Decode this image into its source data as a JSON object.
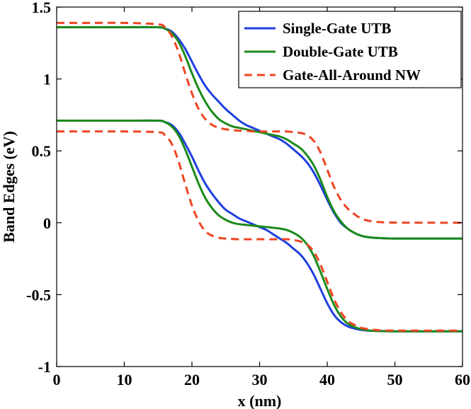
{
  "chart_data": {
    "type": "line",
    "xlabel": "x (nm)",
    "ylabel": "Band Edges (eV)",
    "xlim": [
      0,
      60
    ],
    "ylim": [
      -1,
      1.5
    ],
    "xticks": [
      {
        "value": 0,
        "label": "0"
      },
      {
        "value": 10,
        "label": "10"
      },
      {
        "value": 20,
        "label": "20"
      },
      {
        "value": 30,
        "label": "30"
      },
      {
        "value": 40,
        "label": "40"
      },
      {
        "value": 50,
        "label": "50"
      },
      {
        "value": 60,
        "label": "60"
      }
    ],
    "yticks": [
      {
        "value": -1,
        "label": "-1"
      },
      {
        "value": -0.5,
        "label": "-0.5"
      },
      {
        "value": 0,
        "label": "0"
      },
      {
        "value": 0.5,
        "label": "0.5"
      },
      {
        "value": 1,
        "label": "1"
      },
      {
        "value": 1.5,
        "label": "1.5"
      }
    ],
    "grid": false,
    "legend_position": "top-right",
    "x": [
      0,
      5,
      10,
      15,
      16,
      17,
      18,
      19,
      20,
      21,
      22,
      23,
      24,
      25,
      26,
      27,
      28,
      29,
      30,
      31,
      32,
      33,
      34,
      35,
      36,
      37,
      38,
      39,
      40,
      41,
      42,
      43,
      44,
      45,
      46,
      47,
      48,
      50,
      55,
      60
    ],
    "series": [
      {
        "name": "Single-Gate UTB",
        "color": "#1f3fe0",
        "dash": "solid",
        "curves": [
          [
            1.36,
            1.36,
            1.36,
            1.36,
            1.35,
            1.33,
            1.28,
            1.21,
            1.12,
            1.03,
            0.95,
            0.89,
            0.84,
            0.79,
            0.75,
            0.71,
            0.68,
            0.66,
            0.64,
            0.62,
            0.6,
            0.58,
            0.55,
            0.51,
            0.47,
            0.42,
            0.35,
            0.26,
            0.16,
            0.07,
            0.0,
            -0.04,
            -0.07,
            -0.09,
            -0.1,
            -0.105,
            -0.107,
            -0.11,
            -0.11,
            -0.11
          ],
          [
            0.71,
            0.71,
            0.71,
            0.71,
            0.7,
            0.68,
            0.63,
            0.55,
            0.46,
            0.36,
            0.27,
            0.2,
            0.14,
            0.09,
            0.06,
            0.03,
            0.01,
            -0.01,
            -0.03,
            -0.05,
            -0.08,
            -0.11,
            -0.14,
            -0.18,
            -0.22,
            -0.28,
            -0.36,
            -0.46,
            -0.56,
            -0.64,
            -0.69,
            -0.72,
            -0.735,
            -0.745,
            -0.75,
            -0.752,
            -0.753,
            -0.755,
            -0.755,
            -0.755
          ]
        ]
      },
      {
        "name": "Double-Gate UTB",
        "color": "#1a8a1a",
        "dash": "solid",
        "curves": [
          [
            1.36,
            1.36,
            1.36,
            1.36,
            1.35,
            1.32,
            1.26,
            1.16,
            1.04,
            0.93,
            0.84,
            0.77,
            0.72,
            0.69,
            0.67,
            0.66,
            0.65,
            0.64,
            0.63,
            0.62,
            0.61,
            0.6,
            0.58,
            0.55,
            0.52,
            0.47,
            0.4,
            0.3,
            0.18,
            0.08,
            0.01,
            -0.04,
            -0.07,
            -0.09,
            -0.1,
            -0.105,
            -0.107,
            -0.11,
            -0.11,
            -0.11
          ],
          [
            0.71,
            0.71,
            0.71,
            0.71,
            0.7,
            0.67,
            0.61,
            0.51,
            0.39,
            0.27,
            0.17,
            0.1,
            0.05,
            0.02,
            0.0,
            -0.01,
            -0.015,
            -0.02,
            -0.025,
            -0.03,
            -0.035,
            -0.04,
            -0.05,
            -0.07,
            -0.1,
            -0.15,
            -0.23,
            -0.34,
            -0.46,
            -0.57,
            -0.65,
            -0.7,
            -0.725,
            -0.74,
            -0.748,
            -0.752,
            -0.754,
            -0.755,
            -0.755,
            -0.755
          ]
        ]
      },
      {
        "name": "Gate-All-Around NW",
        "color": "#ee4422",
        "dash": "dashed",
        "curves": [
          [
            1.39,
            1.39,
            1.39,
            1.38,
            1.36,
            1.3,
            1.19,
            1.04,
            0.9,
            0.79,
            0.72,
            0.68,
            0.66,
            0.65,
            0.645,
            0.64,
            0.64,
            0.635,
            0.635,
            0.635,
            0.635,
            0.635,
            0.635,
            0.63,
            0.625,
            0.61,
            0.57,
            0.49,
            0.37,
            0.25,
            0.16,
            0.1,
            0.06,
            0.03,
            0.015,
            0.008,
            0.004,
            0.001,
            0.0,
            0.0
          ],
          [
            0.635,
            0.635,
            0.635,
            0.63,
            0.61,
            0.55,
            0.43,
            0.27,
            0.12,
            0.01,
            -0.06,
            -0.09,
            -0.105,
            -0.11,
            -0.113,
            -0.115,
            -0.115,
            -0.115,
            -0.115,
            -0.115,
            -0.115,
            -0.115,
            -0.115,
            -0.12,
            -0.13,
            -0.15,
            -0.2,
            -0.29,
            -0.41,
            -0.53,
            -0.62,
            -0.68,
            -0.71,
            -0.73,
            -0.74,
            -0.745,
            -0.748,
            -0.75,
            -0.75,
            -0.75
          ]
        ]
      }
    ]
  }
}
